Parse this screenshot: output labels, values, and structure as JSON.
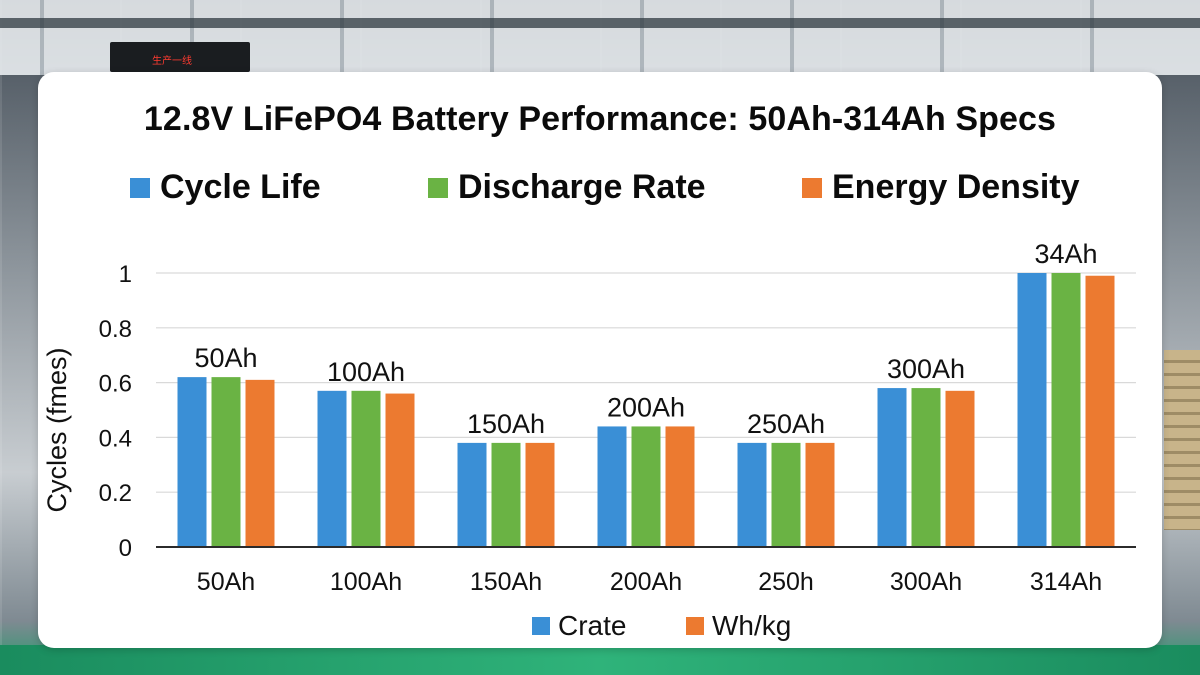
{
  "background": {
    "sign_text": "生产一线"
  },
  "colors": {
    "blue": "#3a8fd6",
    "green": "#6ab344",
    "orange": "#ec7a30",
    "grid": "#d9d9d9",
    "axis": "#2b2b2b"
  },
  "chart_data": {
    "type": "bar",
    "title": "12.8V LiFePO4 Battery Performance: 50Ah-314Ah Specs",
    "ylabel": "Cycles (fmes)",
    "xlabel": "",
    "ylim": [
      0,
      1
    ],
    "yticks": [
      "0",
      "0.2",
      "0.4",
      "0.6",
      "0.8",
      "1"
    ],
    "ytick_values": [
      0,
      0.2,
      0.4,
      0.6,
      0.8,
      1
    ],
    "categories": [
      "50Ah",
      "100Ah",
      "150Ah",
      "200Ah",
      "250h",
      "300Ah",
      "314Ah"
    ],
    "group_labels": [
      "50Ah",
      "100Ah",
      "150Ah",
      "200Ah",
      "250Ah",
      "300Ah",
      "34Ah"
    ],
    "series": [
      {
        "name": "Cycle Life",
        "color": "#3a8fd6",
        "values": [
          0.62,
          0.57,
          0.38,
          0.44,
          0.38,
          0.58,
          1.0
        ]
      },
      {
        "name": "Discharge Rate",
        "color": "#6ab344",
        "values": [
          0.62,
          0.57,
          0.38,
          0.44,
          0.38,
          0.58,
          1.0
        ]
      },
      {
        "name": "Energy Density",
        "color": "#ec7a30",
        "values": [
          0.61,
          0.56,
          0.38,
          0.44,
          0.38,
          0.57,
          0.99
        ]
      }
    ],
    "top_legend": [
      {
        "label": "Cycle Life",
        "color": "#3a8fd6"
      },
      {
        "label": "Discharge Rate",
        "color": "#6ab344"
      },
      {
        "label": "Energy Density",
        "color": "#ec7a30"
      }
    ],
    "bottom_legend": [
      {
        "label": "Crate",
        "color": "#3a8fd6"
      },
      {
        "label": "Wh/kg",
        "color": "#ec7a30"
      }
    ],
    "grid": true,
    "legend_position": "top"
  }
}
